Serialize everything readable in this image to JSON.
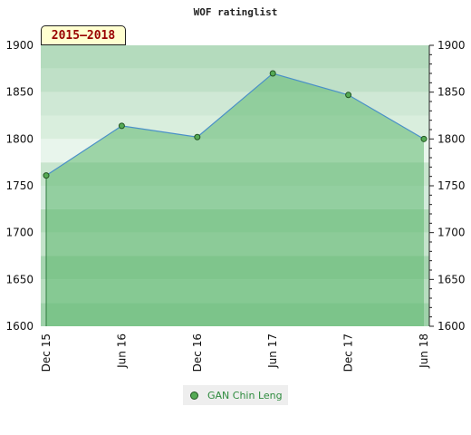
{
  "chart_data": {
    "type": "area",
    "title": "WOF ratinglist",
    "period_label": "2015–2018",
    "x": [
      "Dec 15",
      "Jun 16",
      "Dec 16",
      "Jun 17",
      "Dec 17",
      "Jun 18"
    ],
    "series": [
      {
        "name": "GAN Chin Leng",
        "values": [
          1761,
          1814,
          1802,
          1870,
          1847,
          1800
        ]
      }
    ],
    "ylim": [
      1600,
      1900
    ],
    "y_ticks": [
      1600,
      1650,
      1700,
      1750,
      1800,
      1850,
      1900
    ],
    "xlabel": "",
    "ylabel": "",
    "y_axis_both_sides": true,
    "grid": "horizontal bands",
    "legend_position": "bottom-center",
    "colors": {
      "area_fill": "#5fb86f",
      "line": "#4a90c8",
      "marker_fill": "#55aa55",
      "marker_stroke": "#225522",
      "legend_text": "#2e8b3e",
      "period_text": "#990000",
      "period_bg": "#ffffd0"
    }
  }
}
